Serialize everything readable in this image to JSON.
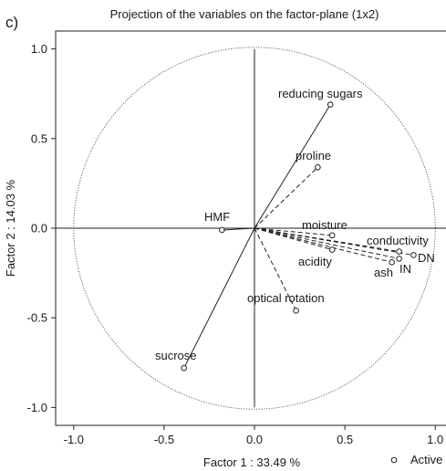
{
  "panel_label": "c)",
  "chart_data": {
    "type": "scatter",
    "title": "Projection of the variables on the factor-plane (1x2)",
    "xlabel": "Factor 1 : 33.49 %",
    "ylabel": "Factor 2 : 14.03 %",
    "xlim": [
      -1.1,
      1.12
    ],
    "ylim": [
      -1.1,
      1.1
    ],
    "xticks": [
      -1.0,
      -0.5,
      0.0,
      0.5,
      1.0
    ],
    "yticks": [
      1.0,
      0.5,
      0.0,
      -0.5,
      -1.0
    ],
    "xtick_labels": [
      "-1.0",
      "-0.5",
      "0.0",
      "0.5",
      "1.0"
    ],
    "ytick_labels": [
      "1.0",
      "0.5",
      "0.0",
      "-0.5",
      "-1.0"
    ],
    "unit_circle": true,
    "grid": false,
    "legend": {
      "position": "bottom-right",
      "entries": [
        "Active"
      ]
    },
    "series": [
      {
        "name": "Active",
        "points": [
          {
            "label": "reducing sugars",
            "x": 0.42,
            "y": 0.69,
            "line": "solid"
          },
          {
            "label": "proline",
            "x": 0.35,
            "y": 0.34,
            "line": "dashed"
          },
          {
            "label": "HMF",
            "x": -0.18,
            "y": -0.01,
            "line": "solid"
          },
          {
            "label": "moisture",
            "x": 0.43,
            "y": -0.04,
            "line": "dashed"
          },
          {
            "label": "acidity",
            "x": 0.43,
            "y": -0.12,
            "line": "dashed"
          },
          {
            "label": "conductivity",
            "x": 0.8,
            "y": -0.13,
            "line": "dashed"
          },
          {
            "label": "DN",
            "x": 0.88,
            "y": -0.15,
            "line": "dashed"
          },
          {
            "label": "IN",
            "x": 0.8,
            "y": -0.17,
            "line": "dashed"
          },
          {
            "label": "ash",
            "x": 0.76,
            "y": -0.19,
            "line": "dashed"
          },
          {
            "label": "optical rotation",
            "x": 0.23,
            "y": -0.46,
            "line": "dashed"
          },
          {
            "label": "sucrose",
            "x": -0.39,
            "y": -0.78,
            "line": "solid"
          }
        ]
      }
    ]
  }
}
